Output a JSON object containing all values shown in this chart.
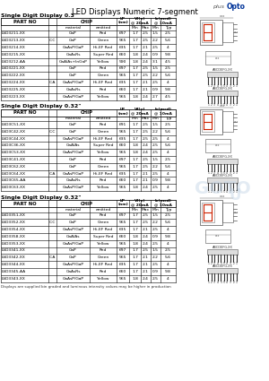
{
  "title": "LED Displays Numeric 7-segment",
  "brand_plain": "plus",
  "brand_bold": "Opto",
  "bg_color": "#ffffff",
  "section1_title": "Single Digit Display 0.3\"",
  "section2_title": "Single Digit Display 0.32\"",
  "section3_title": "Single Digit Display 0.32\"",
  "col_headers": [
    "PART NO",
    "CHIP",
    "LP\n(nm)",
    "Vf(v)\n@ 20mA",
    "",
    "Iv(mcd)\n@ 10mA",
    ""
  ],
  "sub_headers": [
    "material",
    "emitted",
    "",
    "Min",
    "Max",
    "Min",
    "Typ"
  ],
  "section1_rows": [
    [
      "LSD3211-XX",
      "",
      "GaP",
      "Red",
      "697",
      "1.7",
      "2.5",
      "1.5",
      "2.5"
    ],
    [
      "LSD3213-XX",
      "C,C",
      "GaP",
      "Green",
      "565",
      "1.7",
      "2.5",
      "2.2",
      "5.6"
    ],
    [
      "LSD3214-XX",
      "",
      "GaAsP/GaP",
      "Hi-EF Red",
      "635",
      "1.7",
      "2.1",
      "2.5",
      "4"
    ],
    [
      "LSD3215-XX",
      "",
      "GaAsRs",
      "Super Red",
      "660",
      "1.8",
      "2.4",
      "0.9",
      "9.8"
    ],
    [
      "LSD3212-AA",
      "",
      "GaAlAs+InGaP",
      "Yellow",
      "590",
      "1.8",
      "2.4",
      "3.1",
      "4.5"
    ],
    [
      "LSD3221-XX",
      "",
      "GaP",
      "Red",
      "697",
      "1.7",
      "2.5",
      "1.5",
      "2.5"
    ],
    [
      "LSD3222-XX",
      "",
      "GaP",
      "Green",
      "565",
      "1.7",
      "2.5",
      "2.2",
      "5.6"
    ],
    [
      "LSD3224-XX",
      "C,A",
      "GaAsP/GaP",
      "Hi-EF Red",
      "635",
      "1.7",
      "2.1",
      "2.5",
      "4"
    ],
    [
      "LSD3225-XX",
      "",
      "GaAsRs",
      "Red",
      "660",
      "1.7",
      "2.1",
      "0.9",
      "9.8"
    ],
    [
      "LSD3223-XX",
      "",
      "GaAsP/GaP",
      "Yellow",
      "565",
      "1.8",
      "2.4",
      "2.7",
      "4.5"
    ]
  ],
  "section2_rows": [
    [
      "LSD3C51-XX",
      "",
      "GaP",
      "Red",
      "691",
      "1.7",
      "2.5",
      "1.5",
      "2.5"
    ],
    [
      "LSD3C42-XX",
      "C,C",
      "GaP",
      "Green",
      "565",
      "1.7",
      "2.5",
      "2.2",
      "5.6"
    ],
    [
      "LSD3C44-XX",
      "",
      "GaAsP/GaP",
      "Hi-EF Red",
      "635",
      "1.7",
      "2.5",
      "2.5",
      "4"
    ],
    [
      "LSD3C36-XX",
      "",
      "GaAlAs",
      "Super Red",
      "660",
      "1.8",
      "2.4",
      "2.5",
      "5.6"
    ],
    [
      "LSD3C53-XX",
      "",
      "GaAsP/GaP",
      "Yellow",
      "565",
      "1.8",
      "2.4",
      "2.5",
      "4"
    ],
    [
      "LSD3C41-XX",
      "",
      "GaP",
      "Red",
      "697",
      "1.7",
      "2.5",
      "1.5",
      "2.5"
    ],
    [
      "LSD3C62-XX",
      "",
      "GaP",
      "Green",
      "565",
      "1.7",
      "2.5",
      "2.2",
      "5.6"
    ],
    [
      "LSD3C64-XX",
      "C,A",
      "GaAsP/GaP",
      "Hi-EF Red",
      "635",
      "1.7",
      "2.1",
      "2.5",
      "4"
    ],
    [
      "LSD3C65-AA",
      "",
      "GaAsRs",
      "Red",
      "660",
      "1.7",
      "2.1",
      "0.9",
      "9.8"
    ],
    [
      "LSD3C63-XX",
      "",
      "GaAsP/GaP",
      "Yellow",
      "565",
      "1.8",
      "2.4",
      "2.5",
      "4"
    ]
  ],
  "section3_rows": [
    [
      "LSD3351-XX",
      "",
      "GaP",
      "Red",
      "697",
      "1.7",
      "2.5",
      "1.5",
      "2.5"
    ],
    [
      "LSD3352-XX",
      "C,C",
      "GaP",
      "Green",
      "565",
      "1.7",
      "2.5",
      "2.2",
      "5.6"
    ],
    [
      "LSD3354-XX",
      "",
      "GaAsP/GaP",
      "Hi-EF Red",
      "635",
      "1.7",
      "2.1",
      "2.5",
      "4"
    ],
    [
      "LSD3358-XX",
      "",
      "GaAlAs",
      "Super Red",
      "660",
      "1.8",
      "2.4",
      "0.9",
      "9.8"
    ],
    [
      "LSD3353-XX",
      "",
      "GaAsP/GaP",
      "Yellow",
      "565",
      "1.8",
      "2.4",
      "2.5",
      "4"
    ],
    [
      "LSD3341-XX",
      "",
      "GaP",
      "Red",
      "697",
      "1.7",
      "2.5",
      "1.5",
      "2.5"
    ],
    [
      "LSD3342-XX",
      "C,A",
      "GaP",
      "Green",
      "565",
      "1.7",
      "2.1",
      "2.2",
      "5.6"
    ],
    [
      "LSD3344-XX",
      "",
      "GaAsP/GaP",
      "Hi-EF Red",
      "635",
      "1.7",
      "2.1",
      "2.5",
      "4"
    ],
    [
      "LSD3345-AA",
      "",
      "GaAsRs",
      "Red",
      "660",
      "1.7",
      "2.1",
      "0.9",
      "9.8"
    ],
    [
      "LSD3343-XX",
      "",
      "GaAsP/GaP",
      "Yellow",
      "565",
      "1.8",
      "2.4",
      "2.5",
      "4"
    ]
  ],
  "footer": "Displays are supplied bin graded and luminous intensity values may be higher in production"
}
